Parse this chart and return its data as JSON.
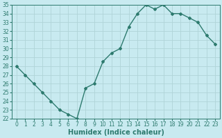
{
  "xlabel": "Humidex (Indice chaleur)",
  "ylabel": "",
  "x": [
    0,
    1,
    2,
    3,
    4,
    5,
    6,
    7,
    8,
    9,
    10,
    11,
    12,
    13,
    14,
    15,
    16,
    17,
    18,
    19,
    20,
    21,
    22,
    23
  ],
  "y": [
    28.0,
    27.0,
    26.0,
    25.0,
    24.0,
    23.0,
    22.5,
    22.0,
    25.5,
    26.0,
    28.5,
    29.5,
    30.0,
    32.5,
    34.0,
    35.0,
    34.5,
    35.0,
    34.0,
    34.0,
    33.5,
    33.0,
    31.5,
    30.5
  ],
  "line_color": "#2d7a6e",
  "marker": "D",
  "marker_size": 2.0,
  "bg_color": "#c8eaf0",
  "grid_color": "#b0d4d8",
  "ylim": [
    22,
    35
  ],
  "xlim": [
    -0.5,
    23.5
  ],
  "yticks": [
    22,
    23,
    24,
    25,
    26,
    27,
    28,
    29,
    30,
    31,
    32,
    33,
    34,
    35
  ],
  "xticks": [
    0,
    1,
    2,
    3,
    4,
    5,
    6,
    7,
    8,
    9,
    10,
    11,
    12,
    13,
    14,
    15,
    16,
    17,
    18,
    19,
    20,
    21,
    22,
    23
  ],
  "tick_label_fontsize": 5.5,
  "xlabel_fontsize": 7,
  "line_width": 1.0
}
